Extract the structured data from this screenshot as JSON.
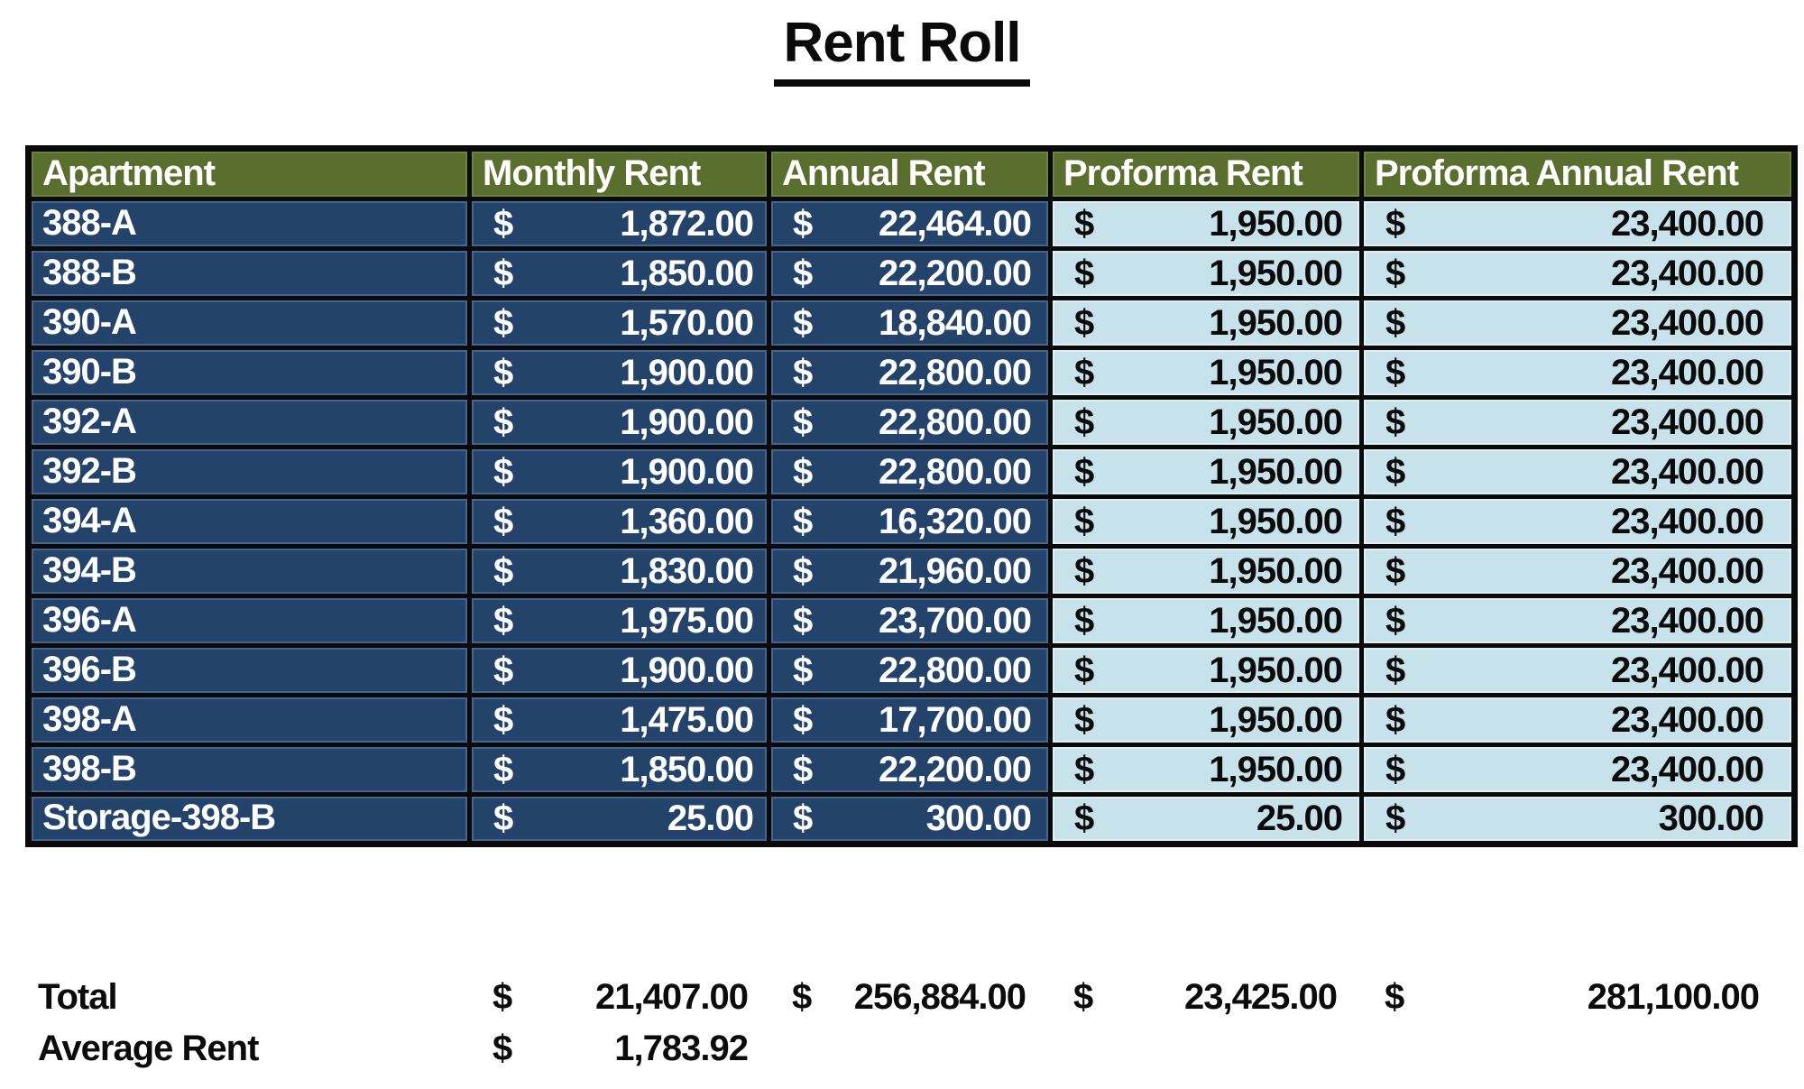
{
  "title": "Rent Roll",
  "currency": "$",
  "colors": {
    "header_bg": "#5a6e2d",
    "actual_row_bg": "#24436b",
    "proforma_bg": "#c8e2ec",
    "grid_border": "#0a0a0a",
    "header_text": "#ffffff",
    "actual_text": "#ffffff",
    "proforma_text": "#0b0b0b"
  },
  "table": {
    "columns": [
      "Apartment",
      "Monthly Rent",
      "Annual Rent",
      "Proforma Rent",
      "Proforma Annual Rent"
    ],
    "rows": [
      {
        "apartment": "388-A",
        "monthly": "1,872.00",
        "annual": "22,464.00",
        "proforma": "1,950.00",
        "proforma_annual": "23,400.00"
      },
      {
        "apartment": "388-B",
        "monthly": "1,850.00",
        "annual": "22,200.00",
        "proforma": "1,950.00",
        "proforma_annual": "23,400.00"
      },
      {
        "apartment": "390-A",
        "monthly": "1,570.00",
        "annual": "18,840.00",
        "proforma": "1,950.00",
        "proforma_annual": "23,400.00"
      },
      {
        "apartment": "390-B",
        "monthly": "1,900.00",
        "annual": "22,800.00",
        "proforma": "1,950.00",
        "proforma_annual": "23,400.00"
      },
      {
        "apartment": "392-A",
        "monthly": "1,900.00",
        "annual": "22,800.00",
        "proforma": "1,950.00",
        "proforma_annual": "23,400.00"
      },
      {
        "apartment": "392-B",
        "monthly": "1,900.00",
        "annual": "22,800.00",
        "proforma": "1,950.00",
        "proforma_annual": "23,400.00"
      },
      {
        "apartment": "394-A",
        "monthly": "1,360.00",
        "annual": "16,320.00",
        "proforma": "1,950.00",
        "proforma_annual": "23,400.00"
      },
      {
        "apartment": "394-B",
        "monthly": "1,830.00",
        "annual": "21,960.00",
        "proforma": "1,950.00",
        "proforma_annual": "23,400.00"
      },
      {
        "apartment": "396-A",
        "monthly": "1,975.00",
        "annual": "23,700.00",
        "proforma": "1,950.00",
        "proforma_annual": "23,400.00"
      },
      {
        "apartment": "396-B",
        "monthly": "1,900.00",
        "annual": "22,800.00",
        "proforma": "1,950.00",
        "proforma_annual": "23,400.00"
      },
      {
        "apartment": "398-A",
        "monthly": "1,475.00",
        "annual": "17,700.00",
        "proforma": "1,950.00",
        "proforma_annual": "23,400.00"
      },
      {
        "apartment": "398-B",
        "monthly": "1,850.00",
        "annual": "22,200.00",
        "proforma": "1,950.00",
        "proforma_annual": "23,400.00"
      },
      {
        "apartment": "Storage-398-B",
        "monthly": "25.00",
        "annual": "300.00",
        "proforma": "25.00",
        "proforma_annual": "300.00"
      }
    ]
  },
  "summary": {
    "total_label": "Total",
    "total_monthly": "21,407.00",
    "total_annual": "256,884.00",
    "total_proforma": "23,425.00",
    "total_proforma_annual": "281,100.00",
    "average_label": "Average Rent",
    "average_monthly": "1,783.92"
  }
}
